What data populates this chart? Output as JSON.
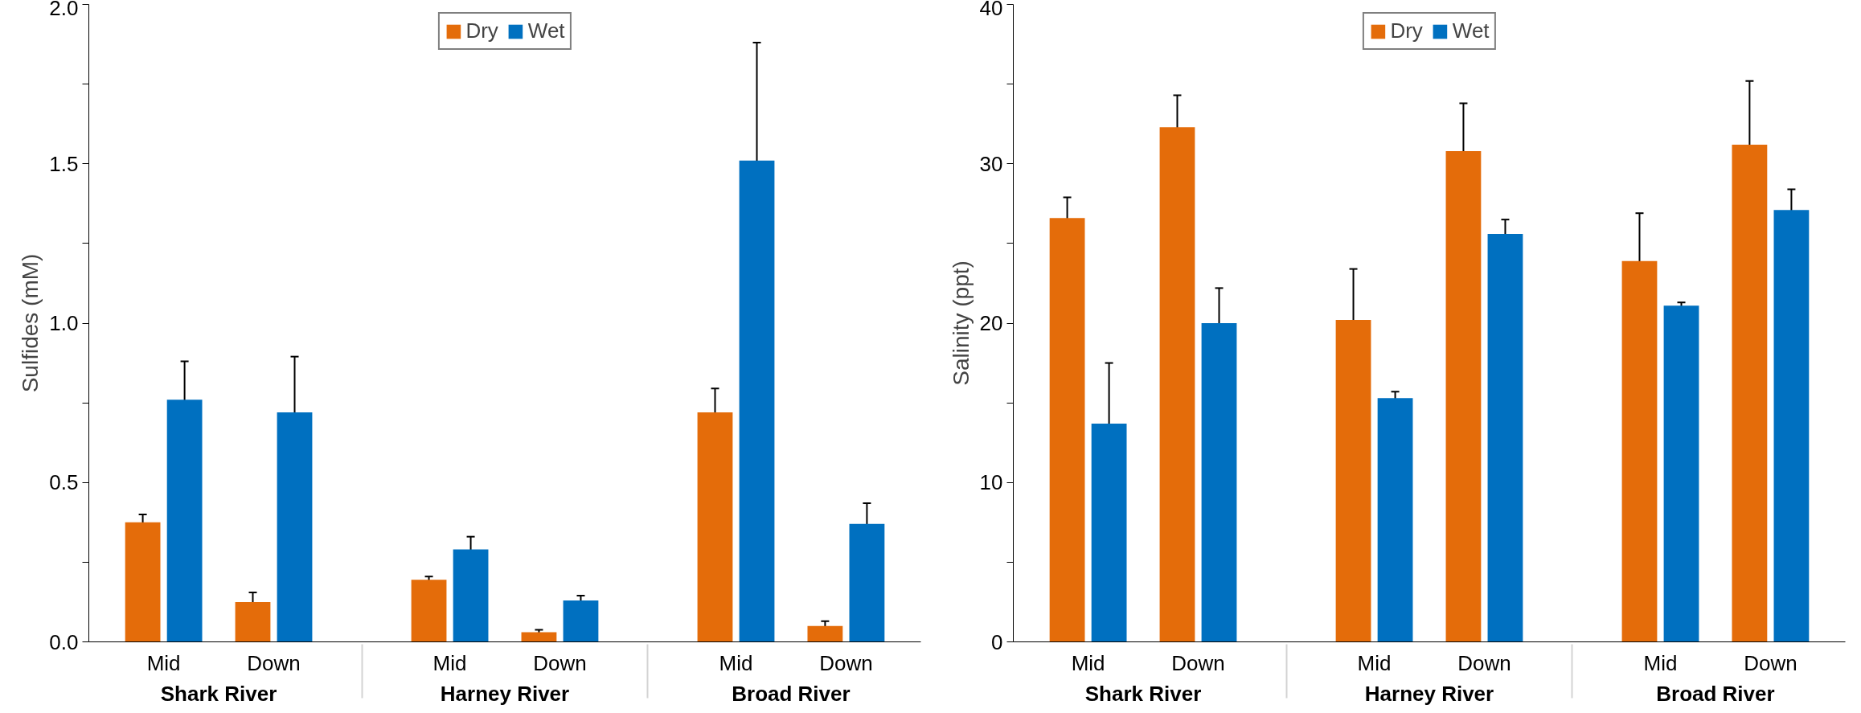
{
  "chart_data": [
    {
      "type": "bar",
      "ylabel": "Sulfides (mM)",
      "categories": [
        "Mid",
        "Down",
        "Mid",
        "Down",
        "Mid",
        "Down"
      ],
      "annotations": [
        "Shark River",
        "Harney River",
        "Broad River"
      ],
      "ylim": [
        0,
        2.0
      ],
      "yticks": [
        {
          "value": 0,
          "label": "0.0"
        },
        {
          "value": 0.25,
          "label": null
        },
        {
          "value": 0.5,
          "label": "0.5"
        },
        {
          "value": 0.75,
          "label": null
        },
        {
          "value": 1.0,
          "label": "1.0"
        },
        {
          "value": 1.25,
          "label": null
        },
        {
          "value": 1.5,
          "label": "1.5"
        },
        {
          "value": 1.75,
          "label": null
        },
        {
          "value": 2.0,
          "label": "2.0"
        }
      ],
      "legend": "top",
      "grid": false,
      "series": [
        {
          "name": "Dry",
          "color": "#e46c0a",
          "values": [
            0.375,
            0.125,
            0.195,
            0.03,
            0.72,
            0.05
          ],
          "errors": [
            0.025,
            0.03,
            0.01,
            0.008,
            0.075,
            0.015
          ]
        },
        {
          "name": "Wet",
          "color": "#0070c0",
          "values": [
            0.76,
            0.72,
            0.29,
            0.13,
            1.51,
            0.37
          ],
          "errors": [
            0.12,
            0.175,
            0.04,
            0.015,
            0.37,
            0.065
          ]
        }
      ]
    },
    {
      "type": "bar",
      "ylabel": "Salinity (ppt)",
      "categories": [
        "Mid",
        "Down",
        "Mid",
        "Down",
        "Mid",
        "Down"
      ],
      "annotations": [
        "Shark River",
        "Harney River",
        "Broad River"
      ],
      "ylim": [
        0,
        40
      ],
      "yticks": [
        0,
        {
          "value": 5,
          "label": null
        },
        10,
        {
          "value": 15,
          "label": null
        },
        20,
        {
          "value": 25,
          "label": null
        },
        30,
        {
          "value": 35,
          "label": null
        },
        40
      ],
      "legend": "top",
      "grid": false,
      "series": [
        {
          "name": "Dry",
          "color": "#e46c0a",
          "values": [
            26.6,
            32.3,
            20.2,
            30.8,
            23.9,
            31.2
          ],
          "errors": [
            1.3,
            2.0,
            3.2,
            3.0,
            3.0,
            4.0
          ]
        },
        {
          "name": "Wet",
          "color": "#0070c0",
          "values": [
            13.7,
            20.0,
            15.3,
            25.6,
            21.1,
            27.1
          ],
          "errors": [
            3.8,
            2.2,
            0.4,
            0.9,
            0.2,
            1.3
          ]
        }
      ]
    }
  ]
}
